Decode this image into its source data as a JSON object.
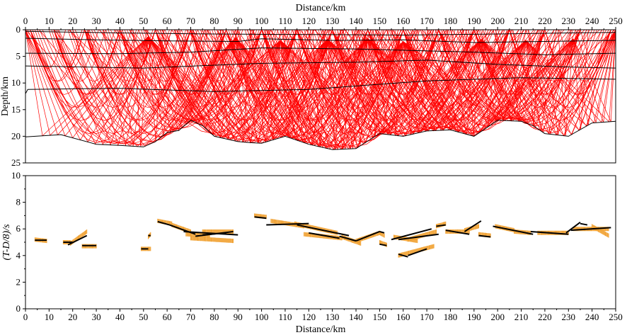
{
  "chart_data": [
    {
      "type": "line",
      "subtype": "ray-tracing-model",
      "xlabel": "Distance/km",
      "ylabel": "Depth/km",
      "x_axis_position": "top",
      "xlim": [
        0,
        250
      ],
      "ylim": [
        25,
        0
      ],
      "x_ticks": [
        0,
        10,
        20,
        30,
        40,
        50,
        60,
        70,
        80,
        90,
        100,
        110,
        120,
        130,
        140,
        150,
        160,
        170,
        180,
        190,
        200,
        210,
        220,
        230,
        240,
        250
      ],
      "y_ticks": [
        0,
        5,
        10,
        15,
        20,
        25
      ],
      "grid": false,
      "colors": {
        "rays": "#ff0000",
        "interfaces": "#000000"
      },
      "interfaces": [
        {
          "x": [
            0,
            40,
            80,
            120,
            160,
            200,
            230,
            250
          ],
          "y": [
            0.3,
            0.6,
            0.8,
            0.9,
            1.0,
            0.8,
            0.6,
            0.5
          ]
        },
        {
          "x": [
            0,
            30,
            60,
            90,
            100,
            130,
            160,
            190,
            220,
            250
          ],
          "y": [
            1.6,
            1.9,
            2.1,
            2.2,
            1.7,
            2.0,
            1.9,
            2.4,
            2.2,
            2.0
          ]
        },
        {
          "x": [
            0,
            40,
            70,
            100,
            140,
            190,
            220,
            250
          ],
          "y": [
            4.4,
            4.5,
            4.2,
            3.4,
            3.6,
            4.2,
            4.7,
            4.4
          ]
        },
        {
          "x": [
            0,
            50,
            100,
            140,
            170,
            200,
            230,
            250
          ],
          "y": [
            6.8,
            7.2,
            6.3,
            6.1,
            5.7,
            6.5,
            7.0,
            7.2
          ]
        },
        {
          "x": [
            0,
            1,
            40,
            80,
            120,
            170,
            210,
            250
          ],
          "y": [
            12.0,
            11.2,
            11.0,
            11.6,
            11.2,
            9.6,
            9.0,
            9.3
          ]
        },
        {
          "x": [
            0,
            15,
            30,
            40,
            50,
            55,
            60,
            65,
            70,
            75,
            80,
            90,
            95,
            100,
            110,
            120,
            130,
            140,
            150,
            160,
            170,
            180,
            190,
            200,
            210,
            215,
            220,
            230,
            240,
            250
          ],
          "y": [
            20.1,
            19.7,
            21.5,
            21.7,
            22.0,
            21.0,
            19.3,
            18.9,
            17.0,
            18.0,
            20.0,
            21.0,
            21.2,
            21.3,
            20.0,
            21.5,
            22.5,
            22.3,
            19.5,
            20.0,
            19.0,
            18.8,
            20.0,
            17.0,
            17.2,
            18.0,
            19.5,
            20.0,
            17.5,
            17.2
          ]
        }
      ],
      "ray_fans": [
        {
          "x": 52,
          "apex_depth": 1.3
        },
        {
          "x": 89,
          "apex_depth": 1.5
        },
        {
          "x": 108,
          "apex_depth": 2.0
        },
        {
          "x": 128,
          "apex_depth": 1.8
        },
        {
          "x": 145,
          "apex_depth": 1.6
        },
        {
          "x": 160,
          "apex_depth": 2.2
        },
        {
          "x": 193,
          "apex_depth": 1.8
        },
        {
          "x": 212,
          "apex_depth": 2.0
        },
        {
          "x": 232,
          "apex_depth": 1.7
        }
      ]
    },
    {
      "type": "scatter",
      "xlabel": "Distance/km",
      "ylabel": "(T-D/8)/s",
      "xlim": [
        0,
        250
      ],
      "ylim": [
        0,
        10
      ],
      "x_ticks": [
        0,
        10,
        20,
        30,
        40,
        50,
        60,
        70,
        80,
        90,
        100,
        110,
        120,
        130,
        140,
        150,
        160,
        170,
        180,
        190,
        200,
        210,
        220,
        230,
        240,
        250
      ],
      "y_ticks": [
        0,
        2,
        4,
        6,
        8,
        10
      ],
      "grid": false,
      "colors": {
        "observed": "#f0a030",
        "calculated": "#000000"
      },
      "observed_segments": [
        [
          [
            4,
            5.2
          ],
          [
            9,
            5.1
          ]
        ],
        [
          [
            16,
            5.0
          ],
          [
            19,
            5.0
          ]
        ],
        [
          [
            19,
            4.9
          ],
          [
            26,
            5.8
          ]
        ],
        [
          [
            24,
            4.7
          ],
          [
            30,
            4.7
          ]
        ],
        [
          [
            49,
            4.5
          ],
          [
            53,
            4.5
          ]
        ],
        [
          [
            52,
            5.4
          ],
          [
            53,
            5.6
          ]
        ],
        [
          [
            56,
            6.6
          ],
          [
            62,
            6.4
          ]
        ],
        [
          [
            62,
            6.3
          ],
          [
            70,
            5.8
          ]
        ],
        [
          [
            68,
            5.6
          ],
          [
            78,
            5.5
          ]
        ],
        [
          [
            70,
            5.3
          ],
          [
            88,
            5.1
          ]
        ],
        [
          [
            75,
            5.8
          ],
          [
            88,
            5.8
          ]
        ],
        [
          [
            97,
            7.0
          ],
          [
            102,
            6.9
          ]
        ],
        [
          [
            104,
            6.6
          ],
          [
            118,
            6.2
          ]
        ],
        [
          [
            114,
            6.4
          ],
          [
            132,
            5.7
          ]
        ],
        [
          [
            118,
            5.6
          ],
          [
            134,
            5.3
          ]
        ],
        [
          [
            134,
            5.4
          ],
          [
            142,
            4.9
          ]
        ],
        [
          [
            140,
            5.1
          ],
          [
            150,
            5.7
          ]
        ],
        [
          [
            150,
            5.7
          ],
          [
            152,
            5.5
          ]
        ],
        [
          [
            150,
            5.0
          ],
          [
            153,
            4.8
          ]
        ],
        [
          [
            156,
            5.4
          ],
          [
            166,
            5.1
          ]
        ],
        [
          [
            158,
            4.0
          ],
          [
            173,
            4.7
          ]
        ],
        [
          [
            162,
            5.2
          ],
          [
            174,
            5.8
          ]
        ],
        [
          [
            174,
            6.2
          ],
          [
            178,
            6.4
          ]
        ],
        [
          [
            178,
            5.8
          ],
          [
            188,
            5.8
          ]
        ],
        [
          [
            186,
            5.9
          ],
          [
            192,
            6.2
          ]
        ],
        [
          [
            192,
            5.6
          ],
          [
            197,
            5.5
          ]
        ],
        [
          [
            199,
            6.2
          ],
          [
            207,
            5.9
          ]
        ],
        [
          [
            207,
            5.8
          ],
          [
            214,
            5.7
          ]
        ],
        [
          [
            217,
            5.7
          ],
          [
            230,
            5.7
          ]
        ],
        [
          [
            232,
            6.0
          ],
          [
            247,
            6.0
          ]
        ],
        [
          [
            240,
            6.2
          ],
          [
            247,
            5.5
          ]
        ]
      ],
      "calculated_segments": [
        [
          [
            4,
            5.15
          ],
          [
            9,
            5.15
          ]
        ],
        [
          [
            16,
            5.0
          ],
          [
            20,
            5.0
          ]
        ],
        [
          [
            18,
            4.8
          ],
          [
            26,
            5.5
          ]
        ],
        [
          [
            24,
            4.75
          ],
          [
            30,
            4.75
          ]
        ],
        [
          [
            49,
            4.5
          ],
          [
            52,
            4.5
          ]
        ],
        [
          [
            52,
            5.5
          ],
          [
            53,
            5.5
          ]
        ],
        [
          [
            56,
            6.55
          ],
          [
            61,
            6.3
          ]
        ],
        [
          [
            61,
            6.3
          ],
          [
            72,
            5.6
          ]
        ],
        [
          [
            67,
            5.8
          ],
          [
            90,
            5.55
          ]
        ],
        [
          [
            72,
            5.45
          ],
          [
            88,
            5.8
          ]
        ],
        [
          [
            75,
            5.55
          ],
          [
            85,
            5.7
          ]
        ],
        [
          [
            97,
            6.9
          ],
          [
            102,
            6.8
          ]
        ],
        [
          [
            102,
            6.3
          ],
          [
            120,
            6.4
          ]
        ],
        [
          [
            115,
            6.3
          ],
          [
            137,
            5.5
          ]
        ],
        [
          [
            120,
            5.7
          ],
          [
            133,
            5.3
          ]
        ],
        [
          [
            133,
            5.45
          ],
          [
            140,
            5.1
          ]
        ],
        [
          [
            140,
            5.1
          ],
          [
            150,
            5.8
          ]
        ],
        [
          [
            150,
            5.8
          ],
          [
            152,
            5.7
          ]
        ],
        [
          [
            150,
            4.85
          ],
          [
            153,
            4.75
          ]
        ],
        [
          [
            155,
            5.2
          ],
          [
            172,
            6.0
          ]
        ],
        [
          [
            158,
            4.1
          ],
          [
            162,
            3.9
          ]
        ],
        [
          [
            162,
            4.0
          ],
          [
            170,
            4.5
          ]
        ],
        [
          [
            158,
            5.2
          ],
          [
            175,
            5.6
          ]
        ],
        [
          [
            174,
            6.2
          ],
          [
            178,
            6.3
          ]
        ],
        [
          [
            178,
            5.9
          ],
          [
            188,
            5.6
          ]
        ],
        [
          [
            186,
            5.8
          ],
          [
            193,
            6.6
          ]
        ],
        [
          [
            192,
            5.5
          ],
          [
            197,
            5.4
          ]
        ],
        [
          [
            198,
            6.2
          ],
          [
            215,
            5.6
          ]
        ],
        [
          [
            214,
            5.8
          ],
          [
            230,
            5.6
          ]
        ],
        [
          [
            229,
            5.7
          ],
          [
            235,
            6.5
          ]
        ],
        [
          [
            235,
            6.4
          ],
          [
            238,
            6.3
          ]
        ],
        [
          [
            231,
            5.9
          ],
          [
            248,
            6.1
          ]
        ]
      ]
    }
  ]
}
